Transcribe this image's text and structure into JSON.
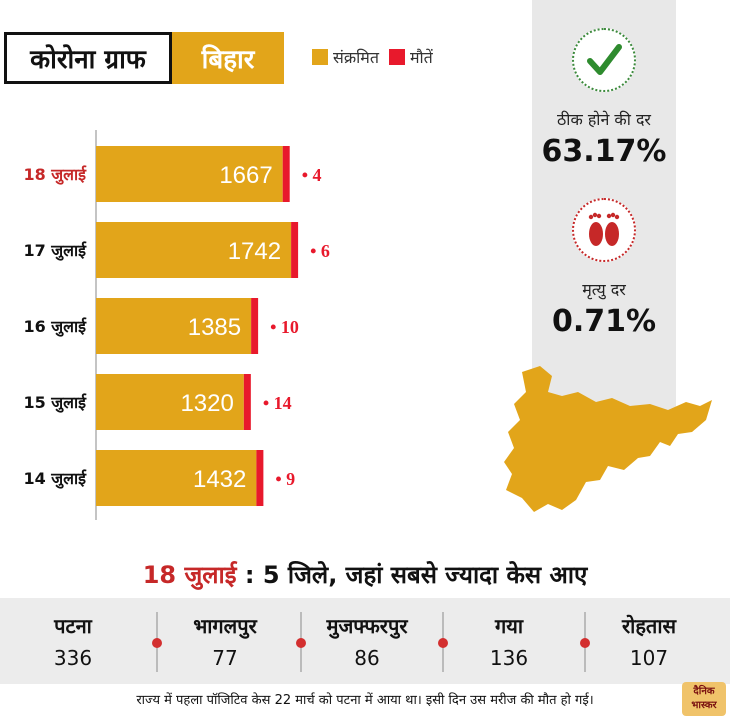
{
  "header": {
    "title": "कोरोना ग्राफ",
    "state": "बिहार",
    "legend": [
      {
        "label": "संक्रमित",
        "color": "#e2a51a"
      },
      {
        "label": "मौतें",
        "color": "#e8192c"
      }
    ]
  },
  "stats": {
    "recovery_label": "ठीक होने की दर",
    "recovery_value": "63.17%",
    "recovery_icon": "check-icon",
    "death_label": "मृत्यु दर",
    "death_value": "0.71%",
    "death_icon": "footprints-icon"
  },
  "chart_data": {
    "type": "bar",
    "orientation": "horizontal",
    "stacked": true,
    "categories": [
      "18 जुलाई",
      "17 जुलाई",
      "16 जुलाई",
      "15 जुलाई",
      "14 जुलाई"
    ],
    "series": [
      {
        "name": "संक्रमित",
        "values": [
          1667,
          1742,
          1385,
          1320,
          1432
        ],
        "color": "#e2a51a"
      },
      {
        "name": "मौतें",
        "values": [
          4,
          6,
          10,
          14,
          9
        ],
        "color": "#e8192c"
      }
    ],
    "death_labels": [
      "• 4",
      "• 6",
      "• 10",
      "• 14",
      "• 9"
    ],
    "highlight_category": "18 जुलाई",
    "highlight_color": "#c62828",
    "grid": false
  },
  "districts": {
    "date": "18 जुलाई",
    "title_rest": ": 5 जिले, जहां सबसे ज्यादा केस आए",
    "items": [
      {
        "name": "पटना",
        "value": "336"
      },
      {
        "name": "भागलपुर",
        "value": "77"
      },
      {
        "name": "मुजफ्फरपुर",
        "value": "86"
      },
      {
        "name": "गया",
        "value": "136"
      },
      {
        "name": "रोहतास",
        "value": "107"
      }
    ]
  },
  "footnote": "राज्य में पहला पॉजिटिव केस 22 मार्च को पटना में आया था। इसी दिन उस मरीज की मौत हो गई।",
  "logo": {
    "line1": "दैनिक",
    "line2": "भास्कर"
  }
}
